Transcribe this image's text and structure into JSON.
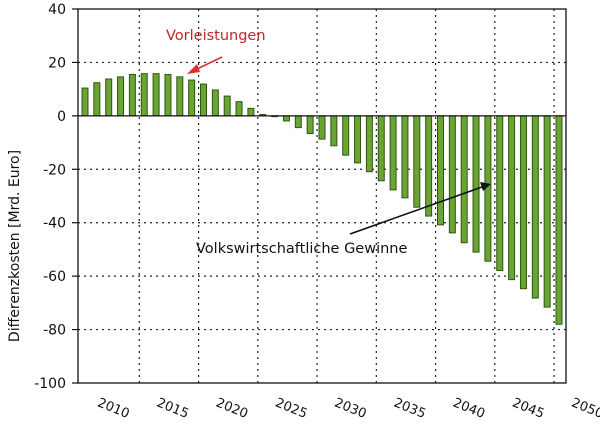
{
  "chart_data": {
    "type": "bar",
    "title": "",
    "xlabel": "",
    "ylabel": "Differenzkosten [Mrd. Euro]",
    "ylim": [
      -100,
      40
    ],
    "yticks": [
      40,
      20,
      0,
      -20,
      -40,
      -60,
      -80,
      -100
    ],
    "xtick_labels": [
      "2010",
      "2015",
      "2020",
      "2025",
      "2030",
      "2035",
      "2040",
      "2045",
      "2050"
    ],
    "grid": true,
    "legend": null,
    "categories": [
      2010,
      2011,
      2012,
      2013,
      2014,
      2015,
      2016,
      2017,
      2018,
      2019,
      2020,
      2021,
      2022,
      2023,
      2024,
      2025,
      2026,
      2027,
      2028,
      2029,
      2030,
      2031,
      2032,
      2033,
      2034,
      2035,
      2036,
      2037,
      2038,
      2039,
      2040,
      2041,
      2042,
      2043,
      2044,
      2045,
      2046,
      2047,
      2048,
      2049,
      2050
    ],
    "values": [
      10.4,
      12.4,
      13.8,
      14.6,
      15.5,
      15.8,
      15.8,
      15.5,
      14.6,
      13.4,
      11.9,
      9.7,
      7.4,
      5.3,
      2.8,
      0.5,
      -0.3,
      -1.9,
      -4.4,
      -6.6,
      -8.7,
      -11.2,
      -14.7,
      -17.6,
      -20.9,
      -24.3,
      -27.7,
      -30.7,
      -34.2,
      -37.5,
      -40.8,
      -43.8,
      -47.5,
      -51.0,
      -54.4,
      -57.9,
      -61.3,
      -64.7,
      -68.2,
      -71.6,
      -78.0
    ],
    "annotations": [
      {
        "text": "Vorleistungen",
        "color": "#c0272d",
        "arrow_color": "#d6332b"
      },
      {
        "text": "Volkswirtschaftliche Gewinne",
        "color": "#111111",
        "arrow_color": "#111111"
      }
    ],
    "colors": {
      "bar_fill": "#6aa534",
      "bar_stroke": "#2f5514"
    }
  }
}
